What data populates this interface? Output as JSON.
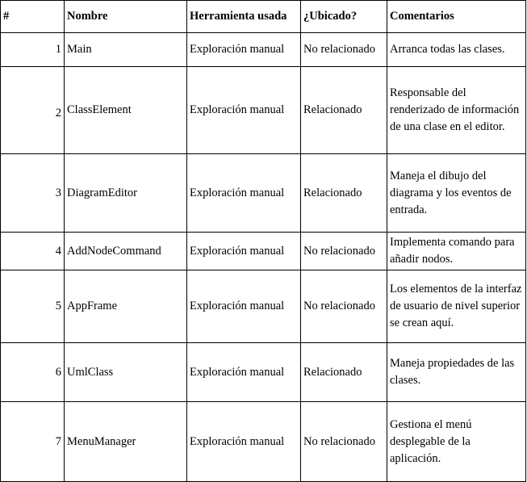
{
  "table": {
    "headers": [
      "#",
      "Nombre",
      "Herramienta usada",
      "¿Ubicado?",
      "Comentarios"
    ],
    "rows": [
      {
        "num": "1",
        "nombre": "Main",
        "herramienta": "Exploración manual",
        "ubicado": "No relacionado",
        "comentarios": "Arranca todas las clases."
      },
      {
        "num": "2",
        "nombre": "ClassElement",
        "herramienta": "Exploración manual",
        "ubicado": "Relacionado",
        "comentarios": "Responsable del renderizado de información de una clase en el editor."
      },
      {
        "num": "3",
        "nombre": "DiagramEditor",
        "herramienta": "Exploración manual",
        "ubicado": "Relacionado",
        "comentarios": "Maneja el dibujo del diagrama y los eventos de entrada."
      },
      {
        "num": "4",
        "nombre": "AddNodeCommand",
        "herramienta": "Exploración manual",
        "ubicado": "No relacionado",
        "comentarios": "Implementa comando para añadir nodos."
      },
      {
        "num": "5",
        "nombre": "AppFrame",
        "herramienta": "Exploración manual",
        "ubicado": "No relacionado",
        "comentarios": "Los elementos de la interfaz de usuario de nivel superior se crean aquí."
      },
      {
        "num": "6",
        "nombre": "UmlClass",
        "herramienta": "Exploración manual",
        "ubicado": "Relacionado",
        "comentarios": "Maneja propiedades de las clases."
      },
      {
        "num": "7",
        "nombre": "MenuManager",
        "herramienta": "Exploración manual",
        "ubicado": "No relacionado",
        "comentarios": "Gestiona el menú desplegable de la aplicación."
      }
    ]
  }
}
